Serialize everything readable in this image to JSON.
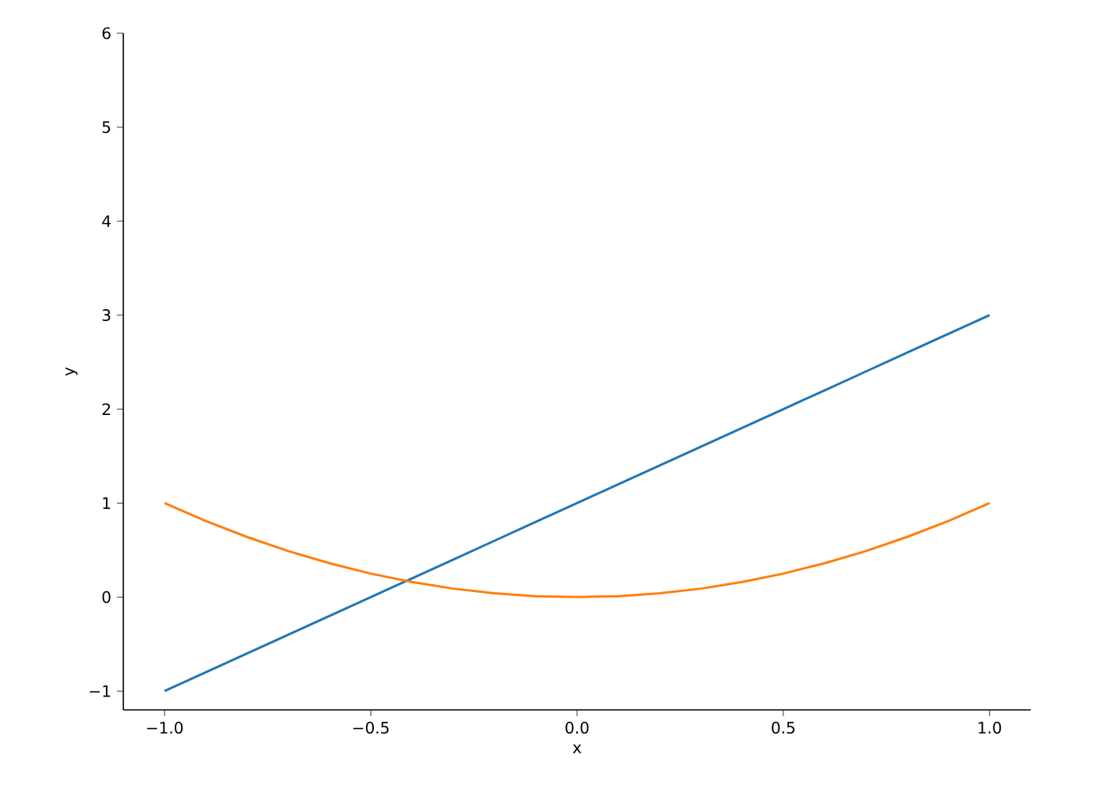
{
  "chart_data": {
    "type": "line",
    "xlabel": "x",
    "ylabel": "y",
    "xlim": [
      -1.1,
      1.1
    ],
    "ylim": [
      -1.2,
      6
    ],
    "xticks": [
      {
        "value": -1,
        "label": "−1.0"
      },
      {
        "value": -0.5,
        "label": "−0.5"
      },
      {
        "value": 0,
        "label": "0.0"
      },
      {
        "value": 0.5,
        "label": "0.5"
      },
      {
        "value": 1,
        "label": "1.0"
      }
    ],
    "yticks": [
      {
        "value": -1,
        "label": "−1"
      },
      0,
      1,
      2,
      3,
      4,
      5,
      6
    ],
    "x": [
      -1,
      -0.9,
      -0.8,
      -0.7,
      -0.6,
      -0.5,
      -0.4,
      -0.3,
      -0.2,
      -0.1,
      0,
      0.1,
      0.2,
      0.3,
      0.4,
      0.5,
      0.6,
      0.7,
      0.8,
      0.9,
      1
    ],
    "series": [
      {
        "color": "#1f77b4",
        "values": [
          -1,
          -0.8,
          -0.6,
          -0.4,
          -0.2,
          0,
          0.2,
          0.4,
          0.6,
          0.8,
          1,
          1.2,
          1.4,
          1.6,
          1.8,
          2,
          2.2,
          2.4,
          2.6,
          2.8,
          3
        ]
      },
      {
        "color": "#ff7f0e",
        "values": [
          1,
          0.81,
          0.64,
          0.49,
          0.36,
          0.25,
          0.16,
          0.09,
          0.04,
          0.01,
          0,
          0.01,
          0.04,
          0.09,
          0.16,
          0.25,
          0.36,
          0.49,
          0.64,
          0.81,
          1
        ]
      }
    ]
  }
}
